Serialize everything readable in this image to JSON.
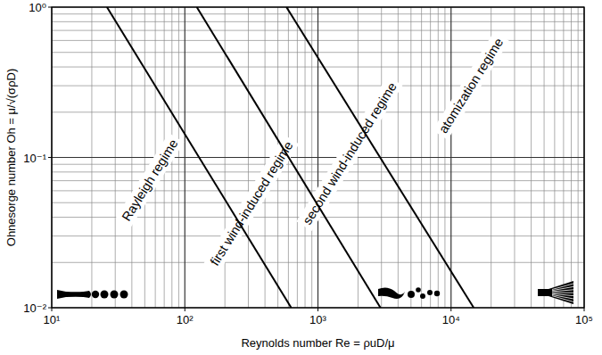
{
  "chart_data": {
    "type": "line",
    "x_label": "Reynolds number  Re = ρuD/μ",
    "y_label": "Ohnesorge number  Oh = μ/√(σρD)",
    "log": true,
    "grid": true,
    "xlim": [
      10,
      100000
    ],
    "ylim": [
      0.01,
      1
    ],
    "xticks": [
      {
        "value": 10,
        "label": "10¹"
      },
      {
        "value": 100,
        "label": "10²"
      },
      {
        "value": 1000,
        "label": "10³"
      },
      {
        "value": 10000,
        "label": "10⁴"
      },
      {
        "value": 100000,
        "label": "10⁵"
      }
    ],
    "yticks": [
      {
        "value": 0.01,
        "label": "10⁻²"
      },
      {
        "value": 0.1,
        "label": "10⁻¹"
      },
      {
        "value": 1,
        "label": "10⁰"
      }
    ],
    "series": [
      {
        "x": [
          26,
          630
        ],
        "values": [
          1,
          0.01
        ],
        "color": "#000000",
        "line_style": "solid"
      },
      {
        "x": [
          123,
          2950
        ],
        "values": [
          1,
          0.01
        ],
        "color": "#000000",
        "line_style": "solid"
      },
      {
        "x": [
          580,
          14800
        ],
        "values": [
          1,
          0.01
        ],
        "color": "#000000",
        "line_style": "solid"
      }
    ],
    "annotations": [
      "Rayleigh regime",
      "first wind-induced regime",
      "second wind-induced regime",
      "atomization regime"
    ]
  }
}
